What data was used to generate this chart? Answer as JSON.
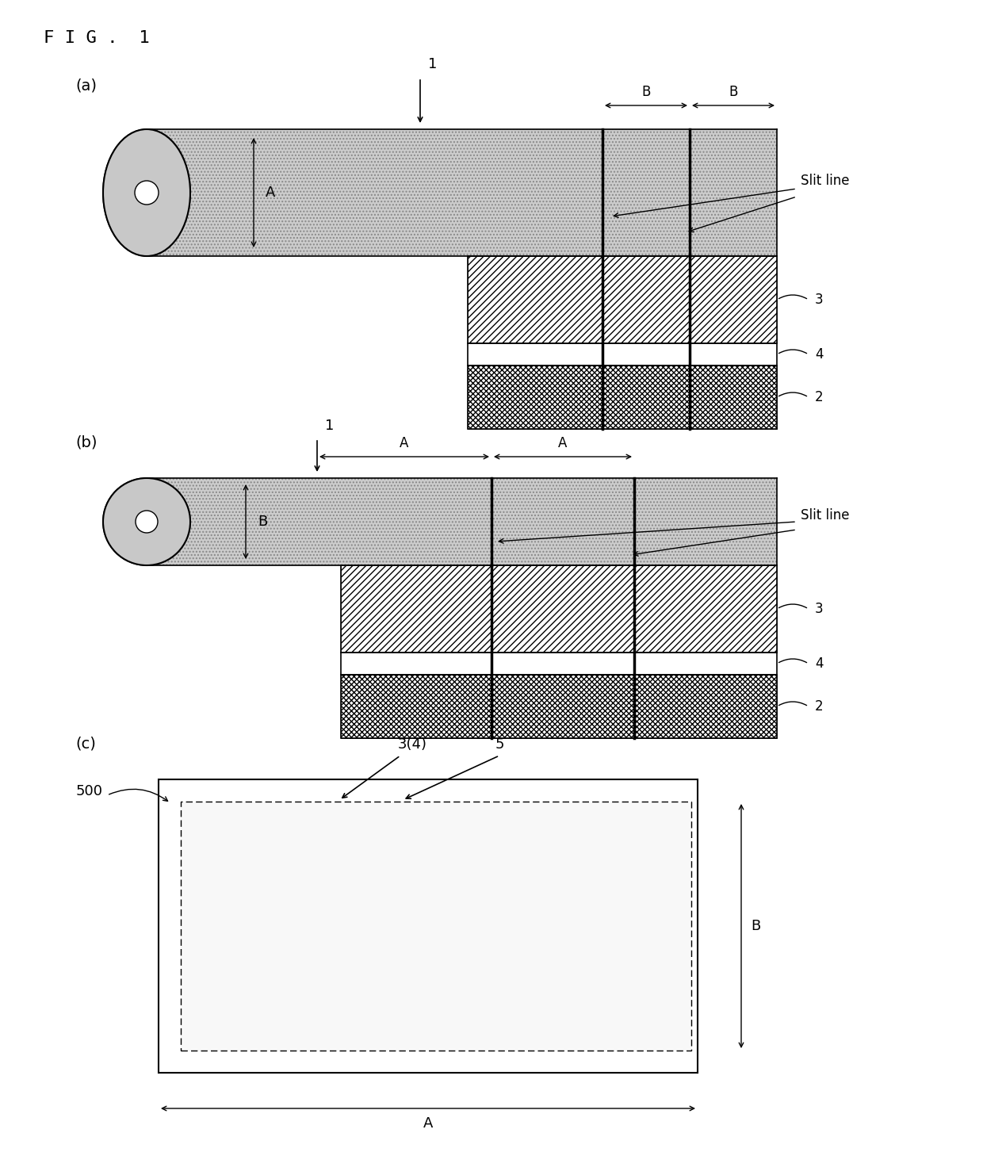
{
  "fig_label": "F I G .  1",
  "panel_a_label": "(a)",
  "panel_b_label": "(b)",
  "panel_c_label": "(c)",
  "bg_color": "#ffffff",
  "slit_line_label": "Slit line",
  "label_1": "1",
  "label_2": "2",
  "label_3": "3",
  "label_4": "4",
  "label_5": "5",
  "label_500": "500",
  "label_A": "A",
  "label_B": "B",
  "label_34": "3(4)",
  "tape_color": "#c8c8c8",
  "font_size": 13
}
